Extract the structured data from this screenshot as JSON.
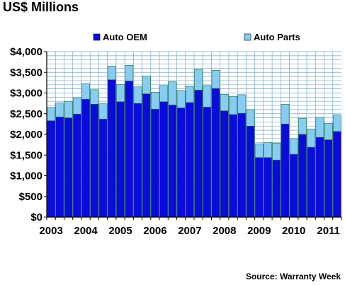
{
  "title": "US$ Millions",
  "source": "Source: Warranty Week",
  "colors": {
    "oem": "#0b0bdc",
    "parts": "#87cdf2",
    "bar_stroke": "#1f6e3a",
    "grid": "#7aa6c9",
    "axis": "#000000"
  },
  "chart_data": {
    "type": "bar",
    "stacked": true,
    "ylim": [
      0,
      4000
    ],
    "y_ticks": [
      {
        "value": 0,
        "label": "$0"
      },
      {
        "value": 500,
        "label": "$500"
      },
      {
        "value": 1000,
        "label": "$1,000"
      },
      {
        "value": 1500,
        "label": "$1,500"
      },
      {
        "value": 2000,
        "label": "$2,000"
      },
      {
        "value": 2500,
        "label": "$2,500"
      },
      {
        "value": 3000,
        "label": "$3,000"
      },
      {
        "value": 3500,
        "label": "$3,500"
      },
      {
        "value": 4000,
        "label": "$4,000"
      }
    ],
    "x_labels": [
      "2003",
      "2004",
      "2005",
      "2006",
      "2007",
      "2008",
      "2009",
      "2010",
      "2011"
    ],
    "grid": true,
    "legend_position": "top",
    "series": [
      {
        "name": "Auto OEM",
        "color": "#0b0bdc",
        "values": [
          2330,
          2420,
          2400,
          2490,
          2850,
          2730,
          2370,
          3320,
          2790,
          3290,
          2750,
          2980,
          2610,
          2790,
          2710,
          2640,
          2770,
          3070,
          2660,
          3110,
          2570,
          2480,
          2510,
          2200,
          1440,
          1440,
          1380,
          2250,
          1520,
          2000,
          1690,
          1930,
          1870,
          2070
        ]
      },
      {
        "name": "Auto Parts",
        "color": "#87cdf2",
        "values": [
          320,
          340,
          400,
          390,
          380,
          350,
          370,
          330,
          420,
          380,
          400,
          430,
          410,
          390,
          560,
          420,
          390,
          500,
          520,
          440,
          400,
          440,
          450,
          400,
          330,
          360,
          410,
          480,
          380,
          390,
          440,
          480,
          400,
          400
        ]
      }
    ]
  }
}
